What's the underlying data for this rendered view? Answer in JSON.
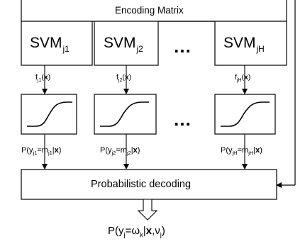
{
  "encoding_matrix": {
    "label": "Encoding Matrix"
  },
  "svms": [
    {
      "base": "SVM",
      "sub": "j1"
    },
    {
      "base": "SVM",
      "sub": "j2"
    },
    {
      "base": "SVM",
      "sub": "jH"
    }
  ],
  "ellipsis": "…",
  "decision_functions": [
    {
      "f": "f",
      "sub": "j1",
      "open": "(",
      "x": "x",
      "close": ")"
    },
    {
      "f": "f",
      "sub": "j2",
      "open": "(",
      "x": "x",
      "close": ")"
    },
    {
      "f": "f",
      "sub": "jH",
      "open": "(",
      "x": "x",
      "close": ")"
    }
  ],
  "probabilities": [
    {
      "prefix": "P(y",
      "ysub": "j1",
      "eq": "=m",
      "msub": "j1",
      "bar": "|",
      "x": "x",
      "close": ")"
    },
    {
      "prefix": "P(y",
      "ysub": "j2",
      "eq": "=m",
      "msub": "j2",
      "bar": "|",
      "x": "x",
      "close": ")"
    },
    {
      "prefix": "P(y",
      "ysub": "jH",
      "eq": "=m",
      "msub": "jH",
      "bar": "|",
      "x": "x",
      "close": ")"
    }
  ],
  "decoder": {
    "label": "Probabilistic decoding"
  },
  "output": {
    "p": "P(y",
    "ysub": "j",
    "eq": "=ω",
    "wsub": "k",
    "bar": "|",
    "x": "x",
    "comma": ",ν",
    "vsub": "j",
    "close": ")"
  }
}
